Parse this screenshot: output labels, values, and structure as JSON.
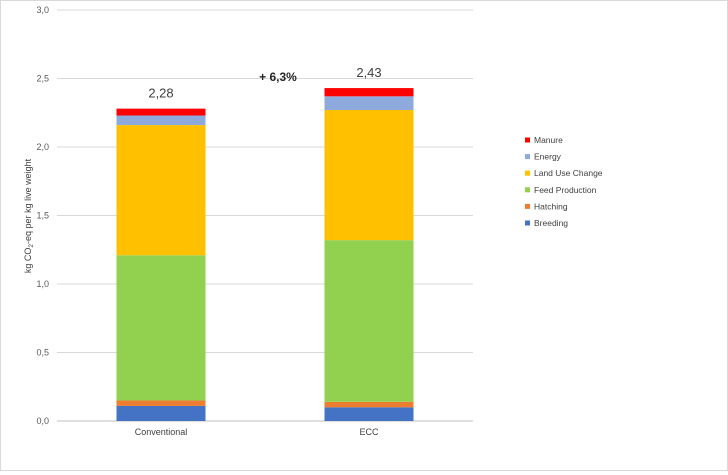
{
  "chart_data": {
    "type": "bar",
    "stacked": true,
    "categories": [
      "Conventional",
      "ECC"
    ],
    "series": [
      {
        "name": "Breeding",
        "color": "#4472C4",
        "values": [
          0.11,
          0.1
        ]
      },
      {
        "name": "Hatching",
        "color": "#ED7D31",
        "values": [
          0.04,
          0.04
        ]
      },
      {
        "name": "Feed Production",
        "color": "#92D050",
        "values": [
          1.06,
          1.18
        ]
      },
      {
        "name": "Land Use Change",
        "color": "#FFC000",
        "values": [
          0.95,
          0.95
        ]
      },
      {
        "name": "Energy",
        "color": "#8EA9DB",
        "values": [
          0.07,
          0.1
        ]
      },
      {
        "name": "Manure",
        "color": "#FF0000",
        "values": [
          0.05,
          0.06
        ]
      }
    ],
    "totals": [
      "2,28",
      "2,43"
    ],
    "annotation": "+ 6,3%",
    "ylabel_prefix": "kg CO",
    "ylabel_sub": "2",
    "ylabel_suffix": "-eq per kg live weight",
    "ylim": [
      0,
      3.0
    ],
    "yticks": [
      "0,0",
      "0,5",
      "1,0",
      "1,5",
      "2,0",
      "2,5",
      "3,0"
    ],
    "legend_order": [
      "Manure",
      "Energy",
      "Land Use Change",
      "Feed Production",
      "Hatching",
      "Breeding"
    ],
    "legend_position": "right",
    "grid": true
  }
}
